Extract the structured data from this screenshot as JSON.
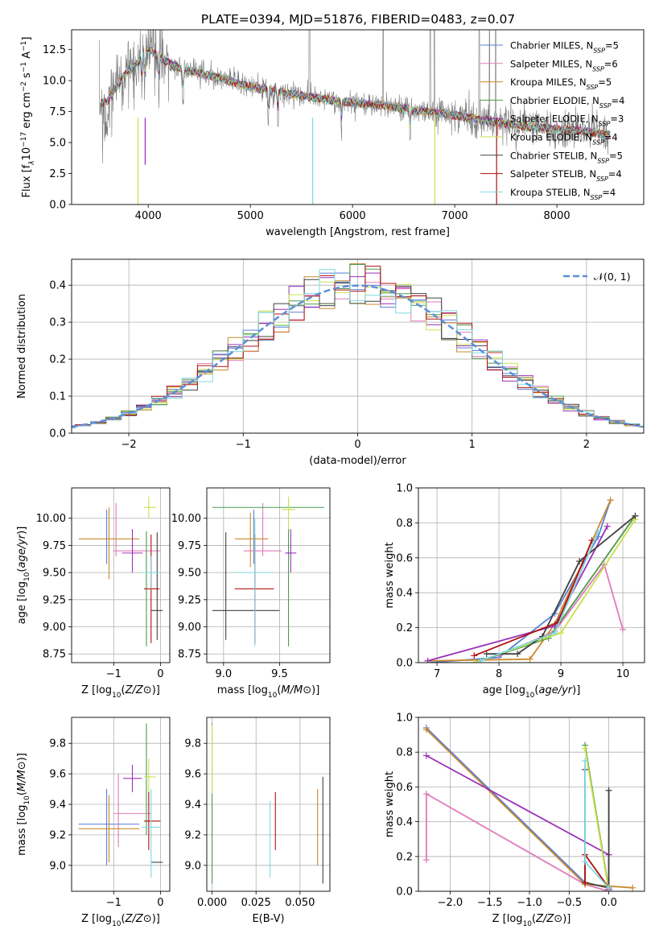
{
  "figure": {
    "title": "PLATE=0394, MJD=51876, FIBERID=0483, z=0.07"
  },
  "colors": {
    "series": [
      "#5b7fd6",
      "#e07aba",
      "#c98a2e",
      "#4e9a4e",
      "#9b30b8",
      "#c8e04a",
      "#404040",
      "#b01010",
      "#7fd8e0"
    ],
    "spectrum": "#7a7a7a",
    "gauss": "#5b8fd6"
  },
  "legend": [
    {
      "label": "Chabrier MILES, N",
      "sub": "SSP",
      "tail": "=5"
    },
    {
      "label": "Salpeter MILES, N",
      "sub": "SSP",
      "tail": "=6"
    },
    {
      "label": "Kroupa MILES, N",
      "sub": "SSP",
      "tail": "=5"
    },
    {
      "label": "Chabrier ELODIE, N",
      "sub": "SSP",
      "tail": "=4"
    },
    {
      "label": "Salpeter ELODIE, N",
      "sub": "SSP",
      "tail": "=3"
    },
    {
      "label": "Kroupa ELODIE, N",
      "sub": "SSP",
      "tail": "=4"
    },
    {
      "label": "Chabrier STELIB, N",
      "sub": "SSP",
      "tail": "=5"
    },
    {
      "label": "Salpeter STELIB, N",
      "sub": "SSP",
      "tail": "=4"
    },
    {
      "label": "Kroupa STELIB, N",
      "sub": "SSP",
      "tail": "=4"
    }
  ],
  "chart_data": [
    {
      "id": "spectrum",
      "type": "line",
      "xlabel": "wavelength [Angstrom, rest frame]",
      "ylabel_parts": [
        "Flux [f",
        "λ",
        "10",
        "−17",
        " erg cm",
        "−2",
        " s",
        "−1",
        " A",
        "−1",
        "]"
      ],
      "xlim": [
        3250,
        8850
      ],
      "ylim": [
        0,
        14.1
      ],
      "xticks": [
        4000,
        5000,
        6000,
        7000,
        8000
      ],
      "yticks": [
        0.0,
        2.5,
        5.0,
        7.5,
        10.0,
        12.5
      ],
      "ytick_labels": [
        "0.0",
        "2.5",
        "5.0",
        "7.5",
        "10.0",
        "12.5"
      ],
      "grid": false,
      "legend_position": "right",
      "continuum": {
        "x": [
          3520,
          3600,
          3700,
          3800,
          3900,
          4000,
          4100,
          4300,
          4500,
          4700,
          5000,
          5200,
          5500,
          5800,
          6000,
          6300,
          6600,
          6800,
          7000,
          7200,
          7500,
          7800,
          8000,
          8200,
          8500
        ],
        "y": [
          8.2,
          8.4,
          9.6,
          10.8,
          11.4,
          12.6,
          11.9,
          11.0,
          10.6,
          10.2,
          9.5,
          9.2,
          8.8,
          8.4,
          8.2,
          8.0,
          7.6,
          7.4,
          7.2,
          6.9,
          6.5,
          6.2,
          6.1,
          6.0,
          5.6
        ]
      },
      "absorption_lines": [
        3934,
        3969,
        4102,
        4340,
        5175,
        5270,
        5890,
        6563
      ],
      "sky_spikes": [
        5578,
        6300,
        6760,
        6800,
        7240,
        7340,
        7400
      ],
      "features": [
        {
          "x": 3900,
          "y": 0.0
        },
        {
          "x": 3970,
          "y": 3.2
        },
        {
          "x": 5610,
          "y": 0.0
        },
        {
          "x": 6805,
          "y": 0.0
        },
        {
          "x": 7410,
          "y": 0.0
        }
      ]
    },
    {
      "id": "residuals",
      "type": "step",
      "xlabel": "(data-model)/error",
      "ylabel": "Normed distribution",
      "xlim": [
        -2.5,
        2.5
      ],
      "ylim": [
        0,
        0.47
      ],
      "xticks": [
        -2,
        -1,
        0,
        1,
        2
      ],
      "xtick_labels": [
        "−2",
        "−1",
        "0",
        "1",
        "2"
      ],
      "yticks": [
        0.0,
        0.1,
        0.2,
        0.3,
        0.4
      ],
      "ytick_labels": [
        "0.0",
        "0.1",
        "0.2",
        "0.3",
        "0.4"
      ],
      "grid": true,
      "legend": "𝒩(0, 1)",
      "legend_position": "top-right",
      "gauss": {
        "mean": 0,
        "sigma": 1
      }
    },
    {
      "id": "age_vs_Z",
      "type": "errorbar",
      "xlabel_parts": [
        "Z [log",
        "10",
        "(",
        "Z/Z",
        "⊙",
        ")]"
      ],
      "ylabel_parts": [
        "age  [log",
        "10",
        "(",
        "age/yr",
        ")]"
      ],
      "xlim": [
        -1.9,
        0.2
      ],
      "ylim": [
        8.67,
        10.28
      ],
      "xticks": [
        -1,
        0
      ],
      "xtick_labels": [
        "−1",
        "0"
      ],
      "yticks": [
        8.75,
        9.0,
        9.25,
        9.5,
        9.75,
        10.0
      ],
      "ytick_labels": [
        "8.75",
        "9.00",
        "9.25",
        "9.50",
        "9.75",
        "10.00"
      ],
      "grid": true,
      "points": [
        {
          "s": 0,
          "x": -1.15,
          "y": 9.83,
          "xlo": -1.15,
          "xhi": -1.15,
          "ylo": 9.58,
          "yhi": 10.08
        },
        {
          "s": 1,
          "x": -0.5,
          "y": 9.7,
          "xlo": -1.0,
          "xhi": 0.0,
          "ylo": 9.7,
          "yhi": 9.7
        },
        {
          "s": 1,
          "x": -0.95,
          "y": 9.9,
          "xlo": -0.95,
          "xhi": -0.95,
          "ylo": 9.65,
          "yhi": 10.14
        },
        {
          "s": 2,
          "x": -1.1,
          "y": 9.81,
          "xlo": -1.75,
          "xhi": -0.45,
          "ylo": 9.44,
          "yhi": 10.1
        },
        {
          "s": 3,
          "x": -0.3,
          "y": 9.35,
          "xlo": -0.3,
          "xhi": -0.3,
          "ylo": 8.82,
          "yhi": 9.88
        },
        {
          "s": 4,
          "x": -0.6,
          "y": 9.68,
          "xlo": -0.82,
          "xhi": -0.38,
          "ylo": 9.5,
          "yhi": 9.9
        },
        {
          "s": 5,
          "x": -0.25,
          "y": 10.1,
          "xlo": -0.35,
          "xhi": -0.1,
          "ylo": 10.0,
          "yhi": 10.2
        },
        {
          "s": 6,
          "x": -0.07,
          "y": 9.15,
          "xlo": -0.2,
          "xhi": 0.05,
          "ylo": 8.88,
          "yhi": 9.87
        },
        {
          "s": 7,
          "x": -0.2,
          "y": 9.35,
          "xlo": -0.35,
          "xhi": -0.02,
          "ylo": 8.85,
          "yhi": 9.85
        },
        {
          "s": 8,
          "x": -0.2,
          "y": 9.5,
          "xlo": -0.4,
          "xhi": 0.0,
          "ylo": 9.35,
          "yhi": 9.65
        }
      ]
    },
    {
      "id": "age_vs_mass",
      "type": "errorbar",
      "xlabel_parts": [
        "mass [log",
        "10",
        "(",
        "M/M",
        "⊙",
        ")]"
      ],
      "xlim": [
        8.85,
        9.95
      ],
      "ylim": [
        8.67,
        10.28
      ],
      "xticks": [
        9.0,
        9.5
      ],
      "xtick_labels": [
        "9.0",
        "9.5"
      ],
      "yticks": [
        8.75,
        9.0,
        9.25,
        9.5,
        9.75,
        10.0
      ],
      "ytick_labels": [
        "8.75",
        "9.00",
        "9.25",
        "9.50",
        "9.75",
        "10.00"
      ],
      "grid": true,
      "points": [
        {
          "s": 0,
          "x": 9.27,
          "y": 9.83,
          "xlo": 9.27,
          "xhi": 9.27,
          "ylo": 9.58,
          "yhi": 10.08
        },
        {
          "s": 1,
          "x": 9.35,
          "y": 9.7,
          "xlo": 9.18,
          "xhi": 9.52,
          "ylo": 9.7,
          "yhi": 9.7
        },
        {
          "s": 1,
          "x": 9.35,
          "y": 9.9,
          "xlo": 9.35,
          "xhi": 9.35,
          "ylo": 9.65,
          "yhi": 10.14
        },
        {
          "s": 2,
          "x": 9.24,
          "y": 9.81,
          "xlo": 9.1,
          "xhi": 9.4,
          "ylo": 9.55,
          "yhi": 10.05
        },
        {
          "s": 3,
          "x": 9.6,
          "y": 10.1,
          "xlo": 8.9,
          "xhi": 9.9,
          "ylo": 10.1,
          "yhi": 10.1
        },
        {
          "s": 3,
          "x": 9.58,
          "y": 9.35,
          "xlo": 9.58,
          "xhi": 9.58,
          "ylo": 8.82,
          "yhi": 9.9
        },
        {
          "s": 4,
          "x": 9.6,
          "y": 9.68,
          "xlo": 9.55,
          "xhi": 9.65,
          "ylo": 9.5,
          "yhi": 9.9
        },
        {
          "s": 5,
          "x": 9.58,
          "y": 10.08,
          "xlo": 9.52,
          "xhi": 9.64,
          "ylo": 9.9,
          "yhi": 10.2
        },
        {
          "s": 6,
          "x": 9.02,
          "y": 9.15,
          "xlo": 8.9,
          "xhi": 9.5,
          "ylo": 8.88,
          "yhi": 9.87
        },
        {
          "s": 7,
          "x": 9.28,
          "y": 9.35,
          "xlo": 9.1,
          "xhi": 9.45,
          "ylo": 8.85,
          "yhi": 9.85
        },
        {
          "s": 8,
          "x": 9.28,
          "y": 9.5,
          "xlo": 9.1,
          "xhi": 9.45,
          "ylo": 8.82,
          "yhi": 10.0
        }
      ]
    },
    {
      "id": "weight_vs_age",
      "type": "line",
      "xlabel_parts": [
        "age  [log",
        "10",
        "(",
        "age/yr",
        ")]"
      ],
      "ylabel": "mass weight",
      "xlim": [
        6.7,
        10.35
      ],
      "ylim": [
        0,
        1.0
      ],
      "xticks": [
        7,
        8,
        9,
        10
      ],
      "xtick_labels": [
        "7",
        "8",
        "9",
        "10"
      ],
      "yticks": [
        0.0,
        0.2,
        0.4,
        0.6,
        0.8,
        1.0
      ],
      "ytick_labels": [
        "0.0",
        "0.2",
        "0.4",
        "0.6",
        "0.8",
        "1.0"
      ],
      "grid": true,
      "series": [
        {
          "s": 0,
          "x": [
            6.9,
            8.0,
            8.9,
            9.6,
            9.8
          ],
          "y": [
            0.0,
            0.03,
            0.28,
            0.72,
            0.93
          ]
        },
        {
          "s": 1,
          "x": [
            8.0,
            8.9,
            9.7,
            10.0
          ],
          "y": [
            0.04,
            0.18,
            0.56,
            0.19
          ]
        },
        {
          "s": 2,
          "x": [
            6.85,
            8.5,
            8.9,
            9.8
          ],
          "y": [
            0.01,
            0.02,
            0.22,
            0.93
          ]
        },
        {
          "s": 3,
          "x": [
            7.7,
            8.8,
            10.2
          ],
          "y": [
            0.01,
            0.14,
            0.84
          ]
        },
        {
          "s": 4,
          "x": [
            6.85,
            8.9,
            9.75
          ],
          "y": [
            0.01,
            0.21,
            0.78
          ]
        },
        {
          "s": 5,
          "x": [
            7.6,
            9.0,
            10.2
          ],
          "y": [
            0.0,
            0.17,
            0.82
          ]
        },
        {
          "s": 6,
          "x": [
            7.8,
            8.3,
            8.7,
            9.3,
            10.2
          ],
          "y": [
            0.05,
            0.05,
            0.15,
            0.58,
            0.84
          ]
        },
        {
          "s": 7,
          "x": [
            7.6,
            8.95,
            9.5
          ],
          "y": [
            0.04,
            0.23,
            0.7
          ]
        },
        {
          "s": 8,
          "x": [
            7.7,
            8.9,
            9.6
          ],
          "y": [
            0.01,
            0.17,
            0.75
          ]
        }
      ]
    },
    {
      "id": "mass_vs_Z",
      "type": "errorbar",
      "xlabel_parts": [
        "Z [log",
        "10",
        "(",
        "Z/Z",
        "⊙",
        ")]"
      ],
      "ylabel_parts": [
        "mass [log",
        "10",
        "(",
        "M/M",
        "⊙",
        ")]"
      ],
      "xlim": [
        -1.9,
        0.2
      ],
      "ylim": [
        8.83,
        9.97
      ],
      "xticks": [
        -1,
        0
      ],
      "xtick_labels": [
        "−1",
        "0"
      ],
      "yticks": [
        9.0,
        9.2,
        9.4,
        9.6,
        9.8
      ],
      "ytick_labels": [
        "9.0",
        "9.2",
        "9.4",
        "9.6",
        "9.8"
      ],
      "grid": true,
      "points": [
        {
          "s": 0,
          "x": -1.15,
          "y": 9.27,
          "xlo": -1.75,
          "xhi": -0.45,
          "ylo": 9.0,
          "yhi": 9.5
        },
        {
          "s": 1,
          "x": -0.9,
          "y": 9.35,
          "xlo": -0.9,
          "xhi": -0.9,
          "ylo": 9.12,
          "yhi": 9.6
        },
        {
          "s": 1,
          "x": -0.6,
          "y": 9.34,
          "xlo": -1.0,
          "xhi": -0.2,
          "ylo": 9.34,
          "yhi": 9.34
        },
        {
          "s": 2,
          "x": -1.1,
          "y": 9.24,
          "xlo": -1.75,
          "xhi": -0.45,
          "ylo": 9.02,
          "yhi": 9.46
        },
        {
          "s": 3,
          "x": -0.3,
          "y": 9.58,
          "xlo": -0.3,
          "xhi": -0.3,
          "ylo": 9.2,
          "yhi": 9.93
        },
        {
          "s": 4,
          "x": -0.6,
          "y": 9.57,
          "xlo": -0.8,
          "xhi": -0.4,
          "ylo": 9.48,
          "yhi": 9.66
        },
        {
          "s": 5,
          "x": -0.25,
          "y": 9.58,
          "xlo": -0.35,
          "xhi": -0.1,
          "ylo": 9.45,
          "yhi": 9.7
        },
        {
          "s": 6,
          "x": -0.07,
          "y": 9.02,
          "xlo": -0.2,
          "xhi": 0.05,
          "ylo": 9.02,
          "yhi": 9.02
        },
        {
          "s": 7,
          "x": -0.25,
          "y": 9.29,
          "xlo": -0.35,
          "xhi": 0.0,
          "ylo": 9.1,
          "yhi": 9.48
        },
        {
          "s": 8,
          "x": -0.2,
          "y": 9.25,
          "xlo": -0.4,
          "xhi": 0.0,
          "ylo": 8.92,
          "yhi": 9.5
        }
      ]
    },
    {
      "id": "mass_vs_ebv",
      "type": "errorbar",
      "xlabel": "E(B-V)",
      "xlim": [
        -0.003,
        0.067
      ],
      "ylim": [
        8.83,
        9.97
      ],
      "xticks": [
        0.0,
        0.025,
        0.05
      ],
      "xtick_labels": [
        "0.000",
        "0.025",
        "0.050"
      ],
      "yticks": [
        9.0,
        9.2,
        9.4,
        9.6,
        9.8
      ],
      "ytick_labels": [
        "9.0",
        "9.2",
        "9.4",
        "9.6",
        "9.8"
      ],
      "grid": true,
      "points": [
        {
          "s": 3,
          "x": 0.0,
          "y": 9.4,
          "xlo": 0.0,
          "xhi": 0.0,
          "ylo": 8.88,
          "yhi": 9.93
        },
        {
          "s": 5,
          "x": 0.0,
          "y": 9.7,
          "xlo": 0.0,
          "xhi": 0.0,
          "ylo": 9.47,
          "yhi": 9.92
        },
        {
          "s": 8,
          "x": 0.033,
          "y": 9.17,
          "xlo": 0.033,
          "xhi": 0.033,
          "ylo": 8.92,
          "yhi": 9.42
        },
        {
          "s": 7,
          "x": 0.036,
          "y": 9.29,
          "xlo": 0.036,
          "xhi": 0.036,
          "ylo": 9.1,
          "yhi": 9.48
        },
        {
          "s": 2,
          "x": 0.06,
          "y": 9.24,
          "xlo": 0.06,
          "xhi": 0.06,
          "ylo": 9.0,
          "yhi": 9.5
        },
        {
          "s": 6,
          "x": 0.063,
          "y": 9.23,
          "xlo": 0.063,
          "xhi": 0.063,
          "ylo": 8.88,
          "yhi": 9.58
        }
      ]
    },
    {
      "id": "weight_vs_Z",
      "type": "line",
      "xlabel_parts": [
        "Z [log",
        "10",
        "(",
        "Z/Z",
        "⊙",
        ")]"
      ],
      "ylabel": "mass weight",
      "xlim": [
        -2.4,
        0.45
      ],
      "ylim": [
        0,
        1.0
      ],
      "xticks": [
        -2.0,
        -1.5,
        -1.0,
        -0.5,
        0.0
      ],
      "xtick_labels": [
        "−2.0",
        "−1.5",
        "−1.0",
        "−0.5",
        "0.0"
      ],
      "yticks": [
        0.0,
        0.2,
        0.4,
        0.6,
        0.8,
        1.0
      ],
      "ytick_labels": [
        "0.0",
        "0.2",
        "0.4",
        "0.6",
        "0.8",
        "1.0"
      ],
      "grid": true,
      "series": [
        {
          "s": 0,
          "x": [
            -2.3,
            -0.3,
            0.0
          ],
          "y": [
            0.94,
            0.05,
            0.02
          ]
        },
        {
          "s": 1,
          "x": [
            -2.3,
            -2.3,
            -0.3,
            0.0
          ],
          "y": [
            0.18,
            0.56,
            0.04,
            0.0
          ]
        },
        {
          "s": 2,
          "x": [
            -2.3,
            -0.3,
            0.3
          ],
          "y": [
            0.93,
            0.04,
            0.02
          ]
        },
        {
          "s": 3,
          "x": [
            -0.3,
            0.0
          ],
          "y": [
            0.84,
            0.01
          ]
        },
        {
          "s": 4,
          "x": [
            -2.3,
            0.0,
            0.0
          ],
          "y": [
            0.78,
            0.21,
            0.01
          ]
        },
        {
          "s": 5,
          "x": [
            -0.3,
            0.0
          ],
          "y": [
            0.82,
            0.0
          ]
        },
        {
          "s": 6,
          "x": [
            -0.3,
            -0.3,
            0.0,
            0.0
          ],
          "y": [
            0.7,
            0.05,
            0.02,
            0.58
          ]
        },
        {
          "s": 7,
          "x": [
            -0.3,
            -0.3,
            0.0
          ],
          "y": [
            0.05,
            0.21,
            0.02
          ]
        },
        {
          "s": 8,
          "x": [
            -0.3,
            -0.3,
            0.0
          ],
          "y": [
            0.75,
            0.17,
            0.02
          ]
        }
      ]
    }
  ]
}
